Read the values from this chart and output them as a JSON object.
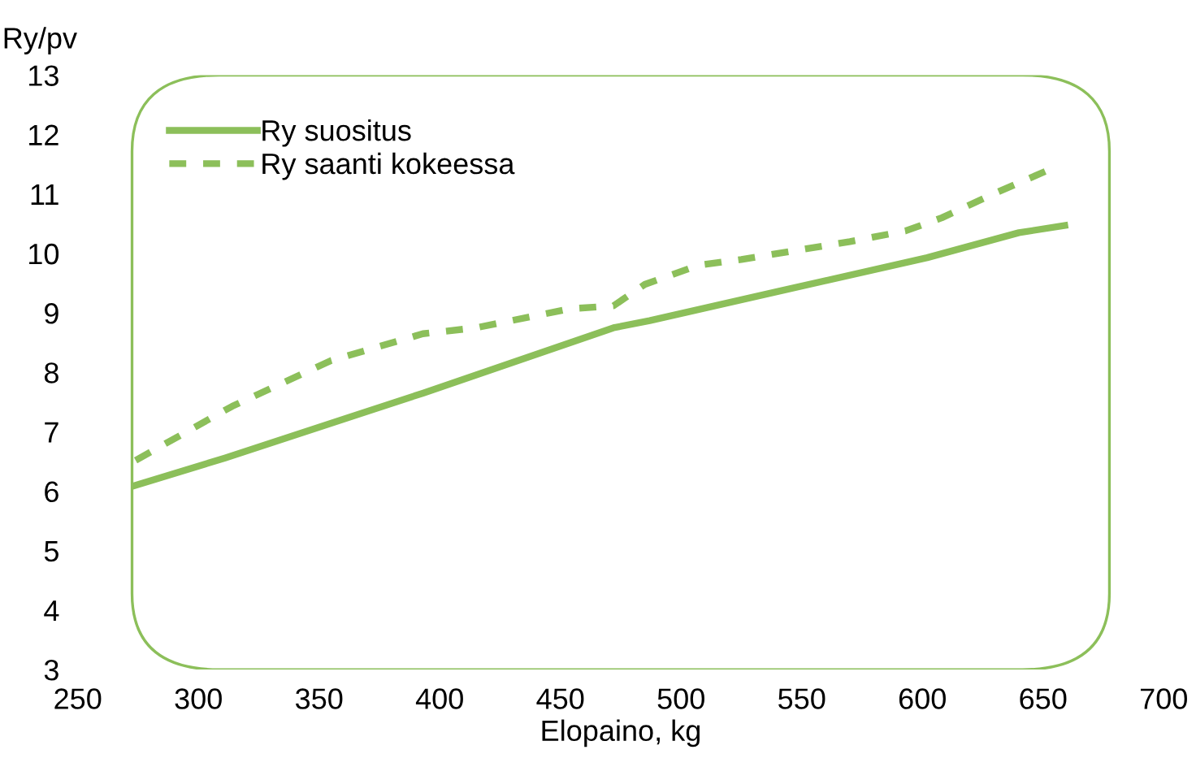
{
  "chart_data": {
    "type": "line",
    "ylabel": "Ry/pv",
    "xlabel": "Elopaino, kg",
    "xlim": [
      250,
      700
    ],
    "xticks": [
      250,
      300,
      350,
      400,
      450,
      500,
      550,
      600,
      650,
      700
    ],
    "ylim": [
      3,
      13
    ],
    "yticks": [
      3,
      4,
      5,
      6,
      7,
      8,
      9,
      10,
      11,
      12,
      13
    ],
    "grid": false,
    "legend": "top left",
    "series": [
      {
        "name": "Ry suositus",
        "color": "#8cbf5a",
        "line_style": "solid",
        "x": [
          274,
          311,
          393,
          472,
          487,
          541,
          602,
          640,
          659
        ],
        "values": [
          6.1,
          6.56,
          7.65,
          8.75,
          8.87,
          9.37,
          9.93,
          10.35,
          10.47
        ]
      },
      {
        "name": "Ry saanti kokeessa",
        "color": "#8cbf5a",
        "line_style": "dashed",
        "x": [
          274,
          314,
          355,
          393,
          415,
          454,
          472,
          485,
          507,
          525,
          570,
          593,
          608,
          631,
          652
        ],
        "values": [
          6.52,
          7.43,
          8.2,
          8.65,
          8.75,
          9.07,
          9.12,
          9.48,
          9.8,
          9.9,
          10.2,
          10.38,
          10.6,
          11.03,
          11.4
        ]
      }
    ]
  }
}
